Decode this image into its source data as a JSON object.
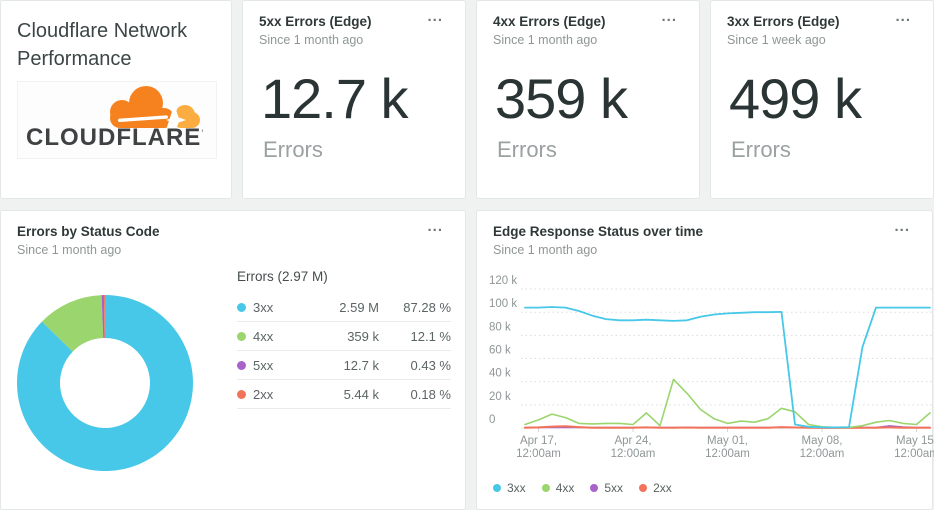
{
  "ui": {
    "menu_label": "..."
  },
  "palette": {
    "c3xx": "#47c8e8",
    "c4xx": "#9bd56e",
    "c5xx": "#a763c9",
    "c2xx": "#f2735b",
    "logo_orange": "#F6821F",
    "logo_light_orange": "#FBAD41",
    "logo_text": "#3f4142"
  },
  "title_card": {
    "title": "Cloudflare Network Performance",
    "logo_word": "CLOUDFLARE",
    "logo_tm": "'"
  },
  "stat_cards": [
    {
      "title": "5xx Errors (Edge)",
      "subtitle": "Since 1 month ago",
      "value": "12.7 k",
      "unit_label": "Errors"
    },
    {
      "title": "4xx Errors (Edge)",
      "subtitle": "Since 1 month ago",
      "value": "359 k",
      "unit_label": "Errors"
    },
    {
      "title": "3xx Errors (Edge)",
      "subtitle": "Since 1 week ago",
      "value": "499 k",
      "unit_label": "Errors"
    }
  ],
  "donut_card": {
    "title": "Errors by Status Code",
    "subtitle": "Since 1 month ago",
    "table_header": "Errors (2.97 M)"
  },
  "line_card": {
    "title": "Edge Response Status over time",
    "subtitle": "Since 1 month ago"
  },
  "chart_data": [
    {
      "type": "pie",
      "title": "Errors by Status Code",
      "total_label": "Errors (2.97 M)",
      "donut": true,
      "series": [
        {
          "name": "3xx",
          "value": 2590000,
          "value_label": "2.59 M",
          "pct": 87.28,
          "pct_label": "87.28 %",
          "color": "#47c8e8"
        },
        {
          "name": "4xx",
          "value": 359000,
          "value_label": "359 k",
          "pct": 12.1,
          "pct_label": "12.1 %",
          "color": "#9bd56e"
        },
        {
          "name": "5xx",
          "value": 12700,
          "value_label": "12.7 k",
          "pct": 0.43,
          "pct_label": "0.43 %",
          "color": "#a763c9"
        },
        {
          "name": "2xx",
          "value": 5440,
          "value_label": "5.44 k",
          "pct": 0.18,
          "pct_label": "0.18 %",
          "color": "#f2735b"
        }
      ]
    },
    {
      "type": "line",
      "title": "Edge Response Status over time",
      "unit": "errors per day, values in thousands (k)",
      "ylim": [
        0,
        120
      ],
      "grid": "horizontal-dashed",
      "legend_position": "bottom",
      "y_axis": [
        {
          "label": "120 k",
          "value": 120
        },
        {
          "label": "100 k",
          "value": 100
        },
        {
          "label": "80 k",
          "value": 80
        },
        {
          "label": "60 k",
          "value": 60
        },
        {
          "label": "40 k",
          "value": 40
        },
        {
          "label": "20 k",
          "value": 20
        },
        {
          "label": "0",
          "value": 0
        }
      ],
      "x_ticks": [
        {
          "day": 1,
          "label": "Apr 17,\n12:00am"
        },
        {
          "day": 8,
          "label": "Apr 24,\n12:00am"
        },
        {
          "day": 15,
          "label": "May 01,\n12:00am"
        },
        {
          "day": 22,
          "label": "May 08,\n12:00am"
        },
        {
          "day": 29,
          "label": "May 15,\n12:00am"
        }
      ],
      "series": [
        {
          "name": "3xx",
          "color": "#47c8e8",
          "z": 4,
          "width": 1.8,
          "values": [
            104,
            104,
            104.5,
            104,
            101,
            97,
            94,
            93,
            93,
            93.5,
            93,
            92.5,
            93,
            96,
            98,
            99,
            99.5,
            100,
            100,
            100.3,
            3,
            1,
            0.6,
            0.5,
            0.8,
            70,
            104,
            104,
            104,
            104,
            104
          ]
        },
        {
          "name": "4xx",
          "color": "#9bd56e",
          "z": 3,
          "width": 1.6,
          "values": [
            3,
            7,
            12,
            9,
            4,
            3.5,
            4,
            4,
            3,
            13,
            2,
            42,
            30,
            16,
            8,
            4,
            6,
            5,
            8,
            17,
            14,
            3,
            1,
            0.5,
            0.5,
            2,
            5,
            6.5,
            4,
            3,
            13
          ]
        },
        {
          "name": "5xx",
          "color": "#a763c9",
          "z": 1,
          "width": 1.6,
          "values": [
            0.4,
            0.4,
            0.4,
            0.4,
            0.4,
            0.4,
            0.4,
            0.4,
            0.4,
            0.4,
            0.4,
            0.4,
            0.4,
            0.4,
            0.4,
            0.4,
            0.4,
            0.4,
            0.4,
            0.4,
            0.4,
            0.3,
            0.3,
            0.3,
            0.3,
            0.4,
            0.4,
            1.8,
            0.8,
            0.4,
            0.4
          ]
        },
        {
          "name": "2xx",
          "color": "#f2735b",
          "z": 2,
          "width": 2,
          "values": [
            0.15,
            0.5,
            1.2,
            1.5,
            0.8,
            0.3,
            0.2,
            0.2,
            0.3,
            0.5,
            0.3,
            0.3,
            0.4,
            0.3,
            0.2,
            0.2,
            0.3,
            0.3,
            0.3,
            0.8,
            0.4,
            0.2,
            0.1,
            0.1,
            0.1,
            0.2,
            0.3,
            0.5,
            0.3,
            0.2,
            0.2
          ]
        }
      ]
    }
  ]
}
